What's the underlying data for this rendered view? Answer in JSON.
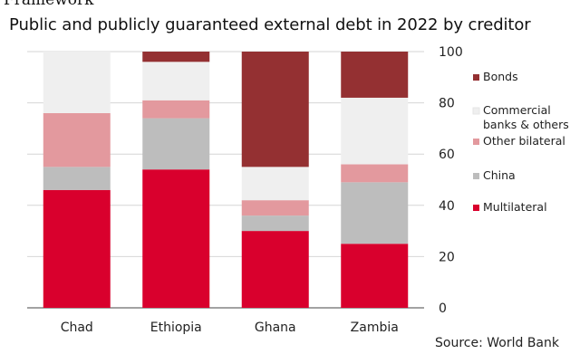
{
  "top_fragment": "Framework",
  "source": "Source: World Bank",
  "chart_data": {
    "type": "bar",
    "stacked": true,
    "title": "Public and publicly guaranteed external debt in 2022 by creditor",
    "categories": [
      "Chad",
      "Ethiopia",
      "Ghana",
      "Zambia"
    ],
    "ylim": [
      0,
      100
    ],
    "yticks": [
      0,
      20,
      40,
      60,
      80,
      100
    ],
    "y_axis_side": "right",
    "legend_position": "right",
    "grid": true,
    "series": [
      {
        "name": "Multilateral",
        "color": "#d9002d",
        "values": [
          46,
          54,
          30,
          25
        ]
      },
      {
        "name": "China",
        "color": "#bdbdbd",
        "values": [
          9,
          20,
          6,
          24
        ]
      },
      {
        "name": "Other bilateral",
        "color": "#e3999e",
        "values": [
          21,
          7,
          6,
          7
        ]
      },
      {
        "name": "Commercial banks & others",
        "color": "#efefef",
        "values": [
          24,
          15,
          13,
          26
        ]
      },
      {
        "name": "Bonds",
        "color": "#943032",
        "values": [
          0,
          4,
          45,
          18
        ]
      }
    ],
    "legend_order": [
      "Bonds",
      "Commercial banks & others",
      "Other bilateral",
      "China",
      "Multilateral"
    ]
  }
}
